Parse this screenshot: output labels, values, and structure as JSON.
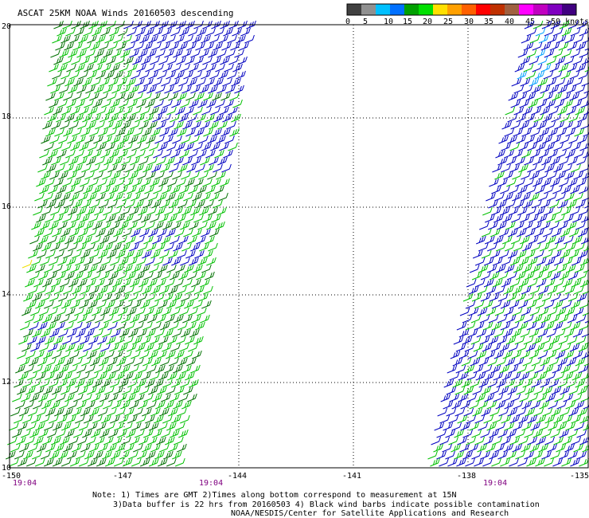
{
  "title": "ASCAT 25KM NOAA Winds 20160503 descending",
  "colorbar": {
    "colors": [
      "#404040",
      "#909090",
      "#00c0ff",
      "#0070ff",
      "#00a000",
      "#00e000",
      "#ffe000",
      "#ffa000",
      "#ff6000",
      "#ff0000",
      "#c03000",
      "#a06040",
      "#ff00ff",
      "#c000c0",
      "#8000c0",
      "#400080"
    ],
    "labels": [
      "0",
      "5",
      "10",
      "15",
      "20",
      "25",
      "30",
      "35",
      "40",
      "45",
      ">50 knots"
    ]
  },
  "axes": {
    "lon_ticks": [
      "-150",
      "-147",
      "-144",
      "-141",
      "-138",
      "-135"
    ],
    "lat_ticks": [
      "20",
      "18",
      "16",
      "14",
      "12",
      "10"
    ]
  },
  "pass_times": [
    "19:04",
    "19:04",
    "19:04"
  ],
  "notes": {
    "line1": "Note: 1) Times are GMT 2)Times along bottom correspond to measurement at 15N",
    "line2": "3)Data buffer is 22 hrs from 20160503 4) Black wind barbs indicate possible contamination",
    "line3": "NOAA/NESDIS/Center for Satellite Applications and Research"
  },
  "wind_colors": {
    "dark_green": "#007000",
    "green": "#00c000",
    "blue": "#0000c0",
    "cyan": "#00a0ff",
    "yellow": "#f0e000"
  }
}
